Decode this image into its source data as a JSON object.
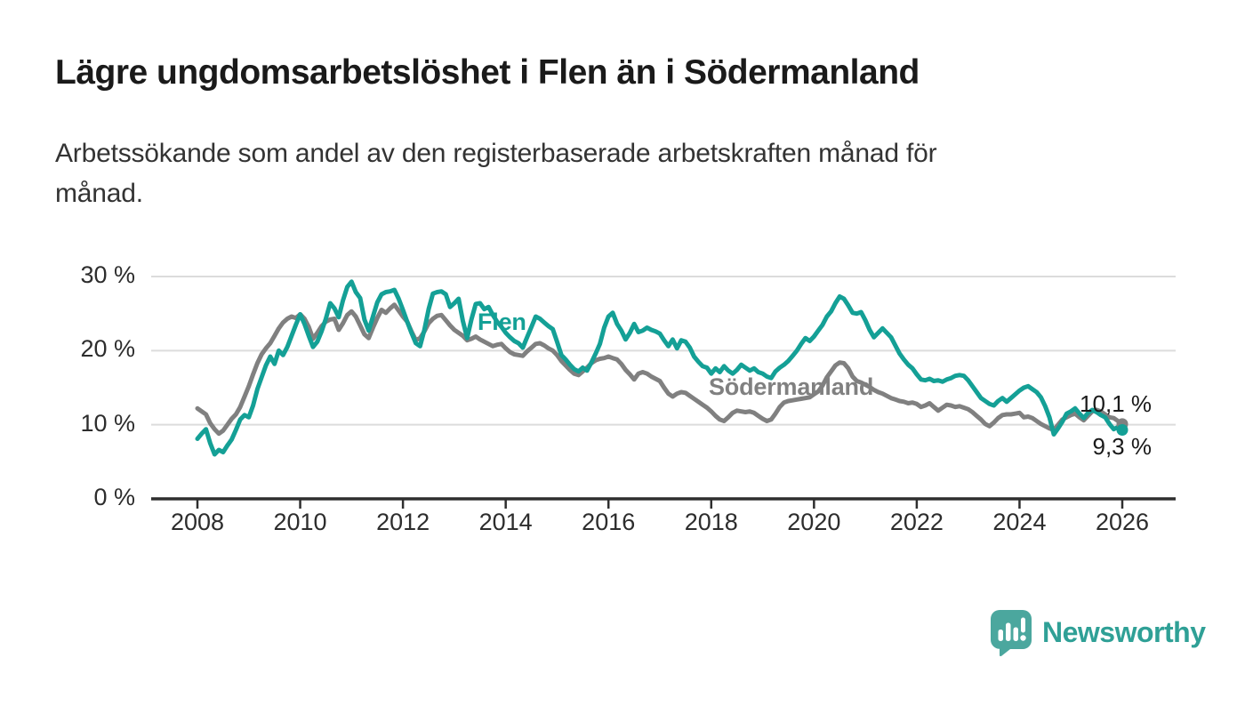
{
  "header": {
    "title": "Lägre ungdomsarbetslöshet i Flen än i Södermanland",
    "subtitle_line1": "Arbetssökande som andel av den registerbaserade arbetskraften månad för",
    "subtitle_line2": "månad."
  },
  "chart_data": {
    "type": "line",
    "title": "Lägre ungdomsarbetslöshet i Flen än i Södermanland",
    "subtitle": "Arbetssökande som andel av den registerbaserade arbetskraften månad för månad.",
    "unit": "%",
    "frequency": "monthly",
    "x_start": "2008-01",
    "x_end": "2026-01",
    "x_ticks": [
      2008,
      2010,
      2012,
      2014,
      2016,
      2018,
      2020,
      2022,
      2024,
      2026
    ],
    "y_ticks": [
      0,
      10,
      20,
      30
    ],
    "y_tick_labels": [
      "0 %",
      "10 %",
      "20 %",
      "30 %"
    ],
    "ylim": [
      0,
      31
    ],
    "grid": "horizontal",
    "legend_position": "inline-labels",
    "colors": {
      "flen": "#14a096",
      "sodermanland": "#808080",
      "grid": "#dcdcdc",
      "axis": "#2f2f2f"
    },
    "series": [
      {
        "name": "Södermanland",
        "color": "#808080",
        "end_label": "10,1 %",
        "end_value": 10.1,
        "values": [
          12.2,
          11.8,
          11.4,
          10.2,
          9.4,
          8.8,
          9.2,
          10.0,
          10.8,
          11.4,
          12.4,
          13.8,
          15.2,
          16.8,
          18.3,
          19.5,
          20.3,
          21.0,
          22.0,
          23.0,
          23.8,
          24.3,
          24.6,
          24.4,
          24.9,
          24.3,
          23.2,
          21.6,
          22.4,
          23.3,
          23.9,
          24.2,
          24.3,
          22.8,
          23.7,
          24.8,
          25.3,
          24.6,
          23.4,
          22.2,
          21.7,
          23.1,
          24.4,
          25.5,
          25.1,
          25.7,
          26.2,
          25.4,
          24.6,
          23.9,
          22.6,
          21.4,
          21.7,
          22.6,
          23.7,
          24.3,
          24.7,
          24.8,
          24.1,
          23.4,
          22.8,
          22.4,
          22.0,
          21.4,
          21.6,
          21.9,
          21.5,
          21.2,
          20.9,
          20.6,
          20.8,
          20.9,
          20.3,
          19.8,
          19.5,
          19.4,
          19.3,
          19.9,
          20.4,
          20.9,
          21.0,
          20.7,
          20.3,
          20.0,
          19.4,
          18.6,
          18.0,
          17.4,
          16.9,
          16.7,
          17.2,
          17.7,
          18.3,
          18.7,
          18.9,
          19.0,
          19.2,
          19.0,
          18.8,
          18.2,
          17.4,
          16.8,
          16.1,
          16.9,
          17.1,
          16.9,
          16.5,
          16.2,
          15.9,
          15.0,
          14.2,
          13.8,
          14.2,
          14.4,
          14.3,
          13.9,
          13.5,
          13.1,
          12.7,
          12.3,
          11.8,
          11.2,
          10.7,
          10.5,
          11.0,
          11.6,
          11.9,
          11.8,
          11.7,
          11.8,
          11.6,
          11.2,
          10.8,
          10.5,
          10.7,
          11.5,
          12.4,
          13.0,
          13.2,
          13.3,
          13.4,
          13.5,
          13.6,
          13.7,
          14.1,
          14.5,
          15.3,
          16.4,
          17.2,
          18.0,
          18.4,
          18.3,
          17.6,
          16.5,
          15.9,
          15.7,
          15.4,
          15.1,
          14.7,
          14.4,
          14.2,
          13.9,
          13.6,
          13.4,
          13.2,
          13.1,
          12.9,
          13.0,
          12.8,
          12.4,
          12.6,
          12.9,
          12.4,
          11.9,
          12.3,
          12.7,
          12.6,
          12.4,
          12.5,
          12.3,
          12.1,
          11.7,
          11.2,
          10.7,
          10.1,
          9.8,
          10.3,
          10.9,
          11.3,
          11.4,
          11.4,
          11.5,
          11.6,
          11.0,
          11.1,
          10.9,
          10.5,
          10.1,
          9.8,
          9.5,
          9.3,
          10.0,
          10.7,
          11.0,
          11.3,
          11.5,
          11.0,
          10.6,
          11.2,
          11.8,
          12.0,
          11.8,
          11.4,
          11.0,
          10.9,
          10.5,
          10.1
        ]
      },
      {
        "name": "Flen",
        "color": "#14a096",
        "end_label": "9,3 %",
        "end_value": 9.3,
        "values": [
          8.1,
          8.8,
          9.4,
          7.5,
          6.0,
          6.6,
          6.3,
          7.2,
          8.0,
          9.3,
          10.7,
          11.3,
          11.0,
          12.6,
          14.8,
          16.4,
          18.0,
          19.2,
          18.2,
          20.0,
          19.4,
          20.5,
          22.0,
          23.5,
          24.9,
          23.6,
          22.0,
          20.5,
          21.2,
          22.6,
          24.3,
          26.4,
          25.7,
          24.5,
          26.8,
          28.6,
          29.3,
          27.9,
          27.1,
          24.2,
          22.7,
          24.6,
          26.5,
          27.6,
          27.9,
          28.0,
          28.2,
          27.0,
          25.5,
          23.9,
          22.4,
          21.0,
          20.6,
          22.8,
          25.6,
          27.7,
          27.9,
          28.0,
          27.6,
          25.9,
          26.4,
          27.0,
          24.0,
          21.7,
          24.2,
          26.3,
          26.4,
          25.6,
          25.9,
          24.8,
          23.9,
          23.2,
          22.4,
          21.8,
          21.3,
          21.0,
          20.4,
          21.8,
          23.2,
          24.6,
          24.3,
          23.8,
          23.3,
          22.9,
          21.2,
          19.4,
          18.8,
          18.1,
          17.5,
          17.2,
          17.7,
          17.3,
          18.4,
          19.6,
          20.9,
          23.1,
          24.6,
          25.1,
          23.6,
          22.7,
          21.5,
          22.4,
          23.6,
          22.5,
          22.7,
          23.1,
          22.8,
          22.6,
          22.3,
          21.4,
          20.6,
          21.5,
          20.3,
          21.4,
          21.2,
          20.4,
          19.2,
          18.5,
          17.9,
          17.7,
          16.9,
          17.6,
          17.1,
          17.9,
          17.3,
          16.9,
          17.4,
          18.1,
          17.7,
          17.3,
          17.6,
          17.1,
          16.9,
          16.5,
          16.3,
          17.2,
          17.7,
          18.1,
          18.6,
          19.3,
          20.0,
          20.9,
          21.7,
          21.3,
          21.9,
          22.7,
          23.5,
          24.6,
          25.3,
          26.4,
          27.3,
          27.0,
          26.1,
          25.1,
          25.0,
          25.2,
          24.1,
          22.8,
          21.8,
          22.4,
          23.0,
          22.4,
          21.8,
          20.7,
          19.6,
          18.8,
          18.1,
          17.6,
          16.8,
          16.1,
          16.0,
          16.2,
          15.9,
          16.0,
          15.8,
          16.1,
          16.3,
          16.6,
          16.7,
          16.6,
          16.0,
          15.2,
          14.4,
          13.6,
          13.2,
          12.8,
          12.6,
          13.2,
          13.6,
          13.1,
          13.6,
          14.1,
          14.6,
          15.0,
          15.2,
          14.8,
          14.4,
          13.7,
          12.5,
          11.0,
          8.7,
          9.5,
          10.4,
          11.5,
          11.8,
          12.2,
          11.5,
          10.9,
          11.6,
          12.0,
          11.7,
          11.3,
          11.0,
          10.1,
          9.4,
          9.7,
          9.3
        ]
      }
    ],
    "annotations": {
      "flen_label": "Flen",
      "sodermanland_label": "Södermanland",
      "end_value_top": "10,1 %",
      "end_value_bottom": "9,3 %"
    }
  },
  "footer": {
    "brand": "Newsworthy"
  }
}
